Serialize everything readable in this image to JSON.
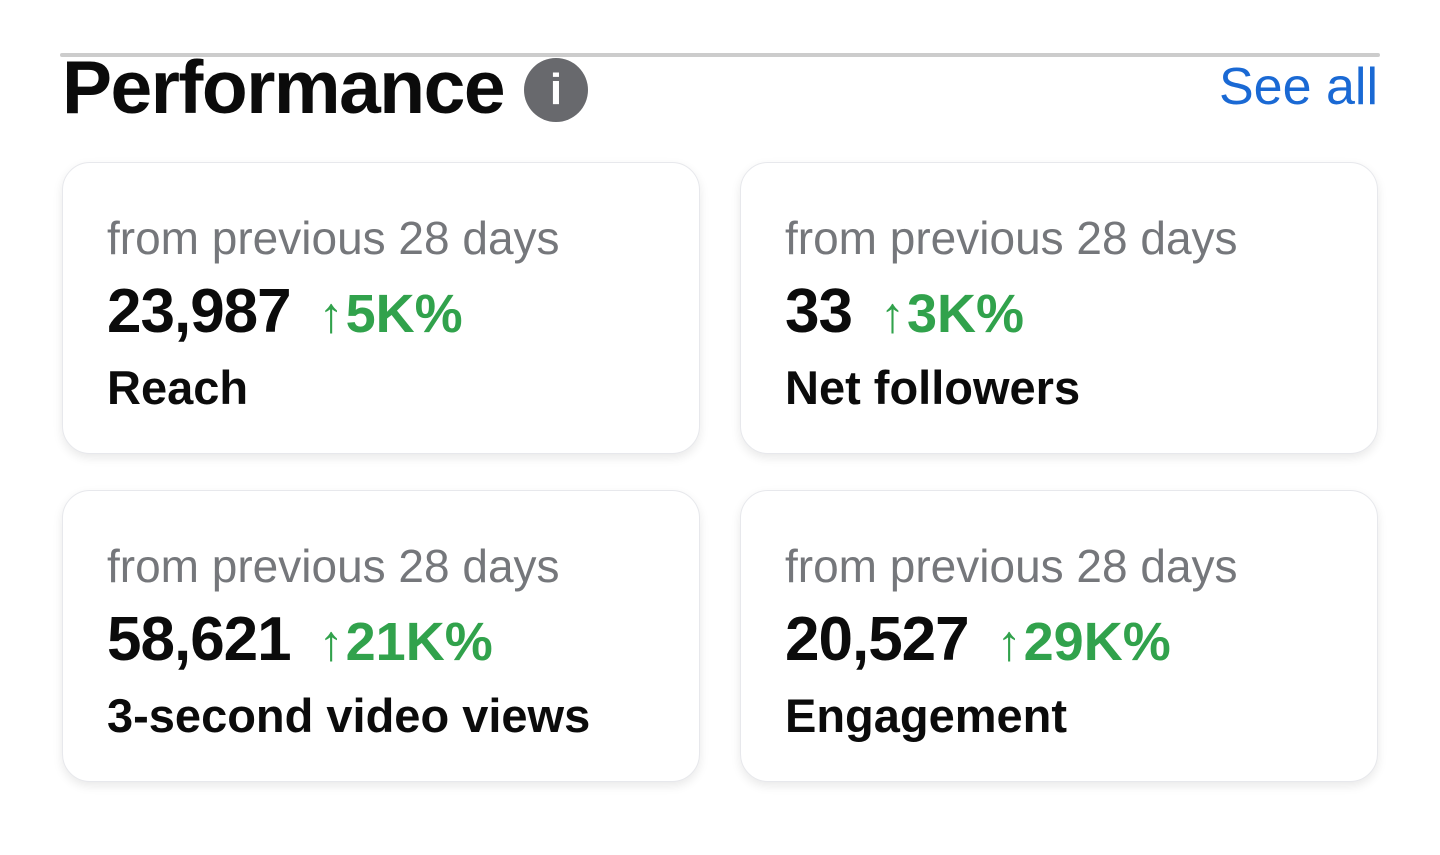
{
  "header": {
    "title": "Performance",
    "info_icon_glyph": "i",
    "see_all_label": "See all"
  },
  "cards": [
    {
      "period": "from previous 28 days",
      "value": "23,987",
      "arrow": "↑",
      "delta": "5K%",
      "trend": "up",
      "label": "Reach"
    },
    {
      "period": "from previous 28 days",
      "value": "33",
      "arrow": "↑",
      "delta": "3K%",
      "trend": "up",
      "label": "Net followers"
    },
    {
      "period": "from previous 28 days",
      "value": "58,621",
      "arrow": "↑",
      "delta": "21K%",
      "trend": "up",
      "label": "3-second video views"
    },
    {
      "period": "from previous 28 days",
      "value": "20,527",
      "arrow": "↑",
      "delta": "29K%",
      "trend": "up",
      "label": "Engagement"
    }
  ],
  "colors": {
    "background": "#ffffff",
    "text_black": "#0b0b0b",
    "muted_gray": "#75777b",
    "positive_green": "#31a24c",
    "link_blue": "#1a69d4",
    "icon_gray": "#68696d",
    "divider_gray": "#cccccc",
    "card_border": "#e7e8ec"
  }
}
